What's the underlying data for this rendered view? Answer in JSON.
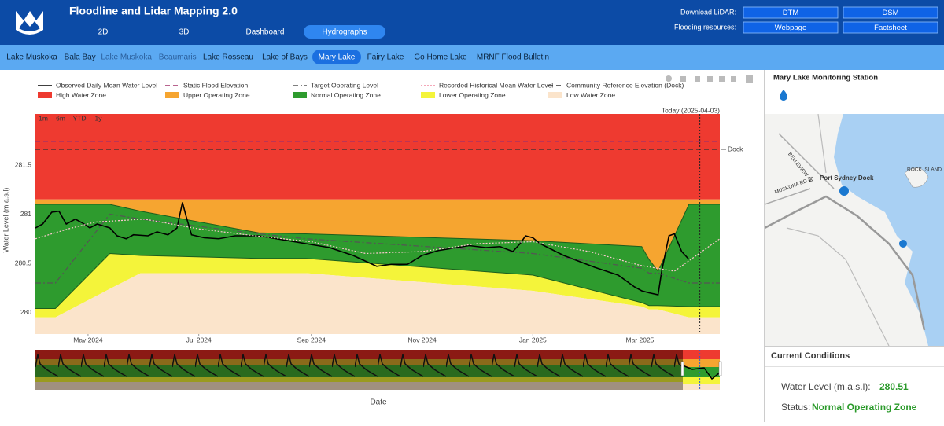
{
  "header": {
    "title": "Floodline and Lidar Mapping 2.0",
    "nav": [
      "2D",
      "3D",
      "Dashboard",
      "Hydrographs"
    ],
    "active_nav": 3,
    "download_label": "Download LiDAR:",
    "download_buttons": [
      "DTM",
      "DSM"
    ],
    "resources_label": "Flooding resources:",
    "resource_buttons": [
      "Webpage",
      "Factsheet"
    ]
  },
  "lake_tabs": [
    "Lake Muskoka - Bala Bay",
    "Lake Muskoka - Beaumaris",
    "Lake Rosseau",
    "Lake of Bays",
    "Mary Lake",
    "Fairy Lake",
    "Go Home Lake",
    "MRNF Flood Bulletin"
  ],
  "active_lake_tab": 4,
  "chart_data": {
    "type": "line",
    "y_label": "Water Level (m.a.s.l)",
    "x_label": "Date",
    "range_buttons": [
      "1m",
      "6m",
      "YTD",
      "1y"
    ],
    "today": {
      "date": "2025-04-03",
      "label": "Today (2025-04-03)"
    },
    "xlim": [
      "2024-04-02",
      "2025-04-14"
    ],
    "xticks": [
      {
        "value": "2024-05-01",
        "label": "May 2024"
      },
      {
        "value": "2024-07-01",
        "label": "Jul 2024"
      },
      {
        "value": "2024-09-01",
        "label": "Sep 2024"
      },
      {
        "value": "2024-11-01",
        "label": "Nov 2024"
      },
      {
        "value": "2025-01-01",
        "label": "Jan 2025"
      },
      {
        "value": "2025-03-01",
        "label": "Mar 2025"
      }
    ],
    "ylim": [
      279.78,
      282.02
    ],
    "yticks": [
      280,
      280.5,
      281,
      281.5
    ],
    "grid": false,
    "series": [
      {
        "name": "Observed Daily Mean Water Level",
        "color": "#000000",
        "style": "solid",
        "x": [
          "2024-04-02",
          "2024-04-06",
          "2024-04-11",
          "2024-04-15",
          "2024-04-19",
          "2024-04-24",
          "2024-04-28",
          "2024-05-02",
          "2024-05-06",
          "2024-05-13",
          "2024-05-17",
          "2024-05-22",
          "2024-05-26",
          "2024-06-03",
          "2024-06-08",
          "2024-06-14",
          "2024-06-19",
          "2024-06-22",
          "2024-06-24",
          "2024-06-27",
          "2024-07-04",
          "2024-07-12",
          "2024-07-21",
          "2024-08-03",
          "2024-08-16",
          "2024-08-29",
          "2024-09-11",
          "2024-09-24",
          "2024-10-07",
          "2024-10-15",
          "2024-10-24",
          "2024-11-01",
          "2024-11-10",
          "2024-11-27",
          "2024-12-06",
          "2024-12-14",
          "2024-12-21",
          "2024-12-25",
          "2024-12-28",
          "2025-01-01",
          "2025-01-05",
          "2025-01-18",
          "2025-02-04",
          "2025-02-17",
          "2025-02-26",
          "2025-03-02",
          "2025-03-06",
          "2025-03-11",
          "2025-03-13",
          "2025-03-17",
          "2025-03-20",
          "2025-03-24",
          "2025-03-28"
        ],
        "values": [
          280.86,
          280.9,
          281.02,
          281.03,
          280.9,
          280.95,
          280.91,
          280.86,
          280.9,
          280.86,
          280.78,
          280.75,
          280.79,
          280.78,
          280.82,
          280.79,
          280.86,
          281.12,
          280.98,
          280.79,
          280.76,
          280.75,
          280.78,
          280.78,
          280.74,
          280.7,
          280.66,
          280.58,
          280.47,
          280.49,
          280.49,
          280.58,
          280.63,
          280.68,
          280.66,
          280.67,
          280.62,
          280.7,
          280.78,
          280.76,
          280.7,
          280.58,
          280.46,
          280.38,
          280.26,
          280.22,
          280.2,
          280.18,
          280.42,
          280.78,
          280.8,
          280.62,
          280.54
        ]
      },
      {
        "name": "Static Flood Elevation",
        "color": "#a0306a",
        "style": "dash",
        "level": 281.74
      },
      {
        "name": "Target Operating Level",
        "color": "#555555",
        "style": "dashdot",
        "x": [
          "2024-04-02",
          "2024-04-13",
          "2024-05-13",
          "2024-05-30",
          "2024-08-03",
          "2024-08-29",
          "2025-01-01",
          "2025-03-02",
          "2025-03-06",
          "2025-03-11",
          "2025-03-28",
          "2025-04-14"
        ],
        "values": [
          280.3,
          280.3,
          281.0,
          280.95,
          280.8,
          280.75,
          280.6,
          280.45,
          280.4,
          280.4,
          280.3,
          280.3
        ]
      },
      {
        "name": "Recorded Historical Mean Water Level",
        "color": "#ffc8d2",
        "style": "dot",
        "x": [
          "2024-04-02",
          "2024-04-20",
          "2024-05-05",
          "2024-06-01",
          "2024-07-01",
          "2024-08-01",
          "2024-09-01",
          "2024-10-01",
          "2024-11-01",
          "2024-12-01",
          "2025-01-01",
          "2025-02-01",
          "2025-03-01",
          "2025-03-20",
          "2025-04-14"
        ],
        "values": [
          280.75,
          280.85,
          280.92,
          280.95,
          280.85,
          280.78,
          280.72,
          280.6,
          280.62,
          280.7,
          280.72,
          280.62,
          280.48,
          280.42,
          280.75
        ]
      },
      {
        "name": "Community Reference Elevation (Dock)",
        "color": "#333333",
        "style": "dash",
        "level": 281.66,
        "label": "Dock"
      }
    ],
    "zone_x": [
      "2024-04-02",
      "2024-04-13",
      "2024-05-13",
      "2024-05-30",
      "2024-08-03",
      "2024-08-29",
      "2025-01-01",
      "2025-03-02",
      "2025-03-06",
      "2025-03-11",
      "2025-03-28",
      "2025-04-14"
    ],
    "zones": [
      {
        "name": "High Water Zone",
        "color": "#ee3a30",
        "lower": [
          281.15,
          281.15,
          281.15,
          281.15,
          281.15,
          281.15,
          281.15,
          281.15,
          281.15,
          281.15,
          281.15,
          281.15
        ]
      },
      {
        "name": "Upper Operating Zone",
        "color": "#f6a530",
        "lower": [
          281.1,
          281.1,
          281.1,
          281.03,
          280.81,
          280.8,
          280.73,
          280.67,
          280.54,
          280.42,
          281.1,
          281.1
        ]
      },
      {
        "name": "Normal Operating Zone",
        "color": "#2e9b2e",
        "lower": [
          280.04,
          280.04,
          280.6,
          280.58,
          280.55,
          280.55,
          280.38,
          280.1,
          280.07,
          280.07,
          280.06,
          280.06
        ]
      },
      {
        "name": "Lower Operating Zone",
        "color": "#f4f43a",
        "lower": [
          279.95,
          279.95,
          280.24,
          280.4,
          280.4,
          280.4,
          280.22,
          280.06,
          280.03,
          280.03,
          279.95,
          279.95
        ]
      },
      {
        "name": "Low Water Zone",
        "color": "#fbe4cb"
      }
    ]
  },
  "side_panel": {
    "title": "Mary Lake Monitoring Station",
    "map_labels": [
      "Port Sydney Dock",
      "ROCK ISLAND",
      "BELLEVIEW AV",
      "MUSKOKA RD 10"
    ],
    "conditions_title": "Current Conditions",
    "water_level_label": "Water Level (m.a.s.l):",
    "water_level": "280.51",
    "status_label": "Status:",
    "status": "Normal Operating Zone"
  }
}
